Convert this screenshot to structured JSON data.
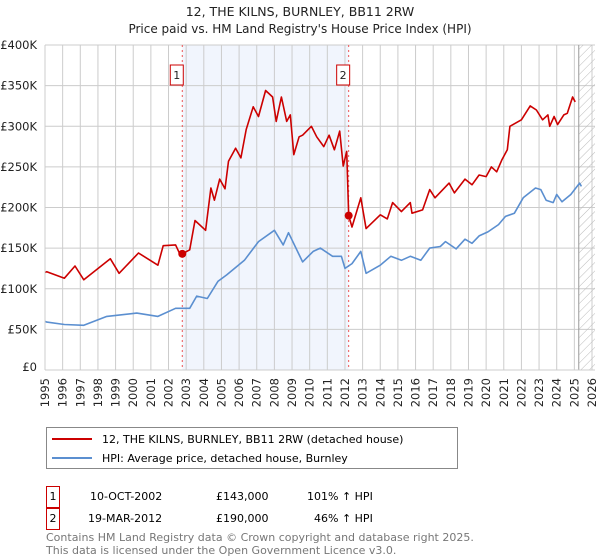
{
  "chart_data": {
    "type": "line",
    "title": "12, THE KILNS, BURNLEY, BB11 2RW",
    "subtitle": "Price paid vs. HM Land Registry's House Price Index (HPI)",
    "xlim": [
      1995,
      2026
    ],
    "ylim": [
      0,
      400000
    ],
    "grid": true,
    "x_ticks": [
      "1995",
      "1996",
      "1997",
      "1998",
      "1999",
      "2000",
      "2001",
      "2002",
      "2003",
      "2004",
      "2005",
      "2006",
      "2007",
      "2008",
      "2009",
      "2010",
      "2011",
      "2012",
      "2013",
      "2014",
      "2015",
      "2016",
      "2017",
      "2018",
      "2019",
      "2020",
      "2021",
      "2022",
      "2023",
      "2024",
      "2025",
      "2026"
    ],
    "y_ticks": [
      {
        "v": 0,
        "label": "£0"
      },
      {
        "v": 50000,
        "label": "£50K"
      },
      {
        "v": 100000,
        "label": "£100K"
      },
      {
        "v": 150000,
        "label": "£150K"
      },
      {
        "v": 200000,
        "label": "£200K"
      },
      {
        "v": 250000,
        "label": "£250K"
      },
      {
        "v": 300000,
        "label": "£300K"
      },
      {
        "v": 350000,
        "label": "£350K"
      },
      {
        "v": 400000,
        "label": "£400K"
      }
    ],
    "shaded_range": [
      2002.78,
      2012.21
    ],
    "forecast_hatch_from": 2025.25,
    "series": [
      {
        "name": "12, THE KILNS, BURNLEY, BB11 2RW (detached house)",
        "color": "#cc0000",
        "x": [
          1995.0,
          1995.1,
          1996.1,
          1996.7,
          1997.2,
          1998.7,
          1999.2,
          2000.3,
          2001.4,
          2001.7,
          2002.4,
          2002.7,
          2002.78,
          2003.2,
          2003.5,
          2004.1,
          2004.4,
          2004.6,
          2004.9,
          2005.2,
          2005.4,
          2005.8,
          2006.1,
          2006.4,
          2006.8,
          2007.1,
          2007.5,
          2007.9,
          2008.1,
          2008.4,
          2008.7,
          2008.9,
          2009.1,
          2009.4,
          2009.6,
          2010.1,
          2010.4,
          2010.8,
          2011.1,
          2011.4,
          2011.7,
          2011.9,
          2012.1,
          2012.21,
          2012.4,
          2012.9,
          2013.2,
          2014.0,
          2014.4,
          2014.7,
          2015.2,
          2015.7,
          2015.8,
          2016.4,
          2016.8,
          2017.1,
          2017.9,
          2018.2,
          2018.8,
          2019.2,
          2019.6,
          2020.0,
          2020.3,
          2020.6,
          2020.9,
          2021.2,
          2021.35,
          2022.0,
          2022.5,
          2022.85,
          2023.2,
          2023.5,
          2023.6,
          2023.85,
          2024.05,
          2024.4,
          2024.6,
          2024.9,
          2025.05
        ],
        "y": [
          120000,
          121000,
          113000,
          128000,
          111000,
          137000,
          119000,
          144000,
          129000,
          153000,
          154000,
          140000,
          143000,
          148000,
          184000,
          172000,
          224000,
          209000,
          235000,
          223000,
          257000,
          273000,
          261000,
          296000,
          324000,
          312000,
          344000,
          336000,
          306000,
          336000,
          306000,
          314000,
          265000,
          287000,
          289000,
          300000,
          287000,
          275000,
          289000,
          271000,
          294000,
          251000,
          269000,
          190000,
          176000,
          212000,
          174000,
          191000,
          186000,
          206000,
          195000,
          206000,
          193000,
          197000,
          222000,
          212000,
          230000,
          218000,
          235000,
          228000,
          240000,
          238000,
          250000,
          244000,
          259000,
          271000,
          300000,
          308000,
          325000,
          320000,
          308000,
          314000,
          300000,
          312000,
          302000,
          314000,
          316000,
          336000,
          330000
        ]
      },
      {
        "name": "HPI: Average price, detached house, Burnley",
        "color": "#5b8fd0",
        "x": [
          1995.0,
          1995.1,
          1996.1,
          1997.2,
          1998.5,
          2000.2,
          2001.4,
          2002.4,
          2003.2,
          2003.6,
          2004.2,
          2004.8,
          2005.3,
          2006.3,
          2007.1,
          2008.0,
          2008.5,
          2008.8,
          2009.6,
          2010.2,
          2010.6,
          2011.3,
          2011.8,
          2012.0,
          2012.4,
          2012.9,
          2013.2,
          2014.0,
          2014.6,
          2015.2,
          2015.7,
          2016.3,
          2016.8,
          2017.4,
          2017.7,
          2018.3,
          2018.8,
          2019.2,
          2019.6,
          2020.1,
          2020.7,
          2021.1,
          2021.6,
          2022.1,
          2022.8,
          2023.1,
          2023.4,
          2023.8,
          2024.0,
          2024.3,
          2024.8,
          2025.3,
          2025.4
        ],
        "y": [
          60000,
          59000,
          56000,
          55000,
          66000,
          70000,
          66000,
          76000,
          76000,
          91000,
          88000,
          109000,
          117000,
          135000,
          158000,
          172000,
          154000,
          169000,
          133000,
          146000,
          150000,
          140000,
          140000,
          125000,
          131000,
          146000,
          119000,
          129000,
          140000,
          135000,
          140000,
          135000,
          150000,
          152000,
          158000,
          149000,
          161000,
          156000,
          165000,
          170000,
          179000,
          189000,
          193000,
          212000,
          224000,
          222000,
          209000,
          206000,
          216000,
          207000,
          216000,
          230000,
          226000
        ]
      }
    ],
    "sales": [
      {
        "label": "1",
        "x": 2002.78,
        "y": 143000,
        "date": "10-OCT-2002",
        "price": "£143,000",
        "hpi": "101% ↑ HPI"
      },
      {
        "label": "2",
        "x": 2012.21,
        "y": 190000,
        "date": "19-MAR-2012",
        "price": "£190,000",
        "hpi": "46% ↑ HPI"
      }
    ]
  },
  "footer": {
    "line1": "Contains HM Land Registry data © Crown copyright and database right 2025.",
    "line2": "This data is licensed under the Open Government Licence v3.0."
  }
}
